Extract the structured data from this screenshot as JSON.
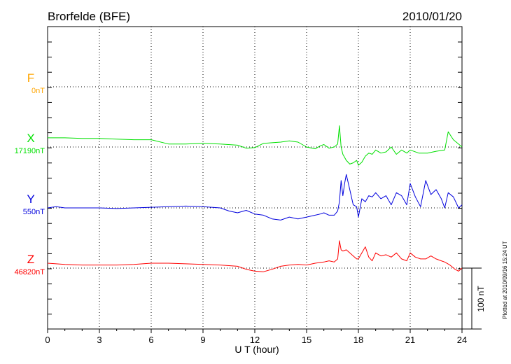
{
  "chart_data": {
    "type": "line",
    "title": "Brorfelde (BFE)",
    "date": "2010/01/20",
    "xlabel": "U T (hour)",
    "xlim": [
      0,
      24
    ],
    "xticks": [
      0,
      3,
      6,
      9,
      12,
      15,
      18,
      21,
      24
    ],
    "scale_bar_label": "100 nT",
    "side_note": "Plotted at 2010/09/16 15:24 UT",
    "grid": true,
    "series": [
      {
        "name": "F",
        "baseline_label": "0nT",
        "color": "#ffa500",
        "x": [],
        "y": []
      },
      {
        "name": "X",
        "baseline_label": "17190nT",
        "color": "#00e000",
        "x": [
          0,
          1,
          2,
          3,
          4,
          5,
          6,
          7,
          8,
          9,
          10,
          11,
          11.5,
          12,
          12.5,
          13,
          13.5,
          14,
          14.5,
          15,
          15.5,
          15.8,
          16,
          16.3,
          16.6,
          16.8,
          16.9,
          17,
          17.1,
          17.3,
          17.5,
          17.7,
          17.9,
          18,
          18.2,
          18.4,
          18.6,
          18.8,
          19,
          19.3,
          19.6,
          19.9,
          20.2,
          20.5,
          20.8,
          21,
          21.5,
          22,
          22.5,
          23,
          23.2,
          23.5,
          23.8,
          24
        ],
        "y": [
          15,
          15,
          14,
          14,
          13,
          12,
          12,
          5,
          5,
          6,
          5,
          3,
          -2,
          -1,
          6,
          7,
          8,
          10,
          8,
          0,
          -3,
          2,
          4,
          -2,
          0,
          5,
          35,
          0,
          -12,
          -22,
          -28,
          -26,
          -22,
          -30,
          -25,
          -15,
          -10,
          -12,
          -5,
          -10,
          -8,
          0,
          -12,
          -5,
          -10,
          -5,
          -10,
          -10,
          -7,
          -5,
          25,
          12,
          5,
          0
        ]
      },
      {
        "name": "Y",
        "baseline_label": "550nT",
        "color": "#0000dd",
        "x": [
          0,
          0.5,
          1,
          2,
          3,
          4,
          5,
          6,
          7,
          8,
          9,
          10,
          10.5,
          11,
          11.5,
          12,
          12.5,
          13,
          13.5,
          14,
          14.5,
          15,
          15.5,
          15.8,
          16,
          16.3,
          16.6,
          16.8,
          16.9,
          17,
          17.1,
          17.2,
          17.3,
          17.5,
          17.7,
          17.9,
          18,
          18.2,
          18.4,
          18.6,
          18.8,
          19,
          19.3,
          19.6,
          19.9,
          20.2,
          20.5,
          20.8,
          21,
          21.3,
          21.6,
          21.9,
          22.2,
          22.5,
          22.8,
          23,
          23.2,
          23.5,
          23.8,
          24
        ],
        "y": [
          0,
          2,
          0,
          0,
          0,
          -1,
          0,
          1,
          2,
          3,
          2,
          0,
          -5,
          -8,
          -4,
          -10,
          -12,
          -18,
          -20,
          -15,
          -18,
          -15,
          -12,
          -10,
          -8,
          -12,
          -12,
          -5,
          10,
          45,
          20,
          40,
          55,
          30,
          5,
          2,
          -15,
          15,
          10,
          20,
          18,
          25,
          15,
          20,
          5,
          25,
          20,
          5,
          40,
          18,
          2,
          45,
          22,
          30,
          15,
          0,
          25,
          18,
          0,
          5
        ]
      },
      {
        "name": "Z",
        "baseline_label": "46820nT",
        "color": "#ff0000",
        "x": [
          0,
          1,
          2,
          3,
          4,
          5,
          6,
          7,
          8,
          9,
          10,
          11,
          11.5,
          12,
          12.5,
          13,
          13.5,
          14,
          14.5,
          15,
          15.5,
          16,
          16.3,
          16.6,
          16.8,
          16.9,
          17,
          17.1,
          17.3,
          17.5,
          17.7,
          17.9,
          18,
          18.2,
          18.4,
          18.6,
          18.8,
          19,
          19.3,
          19.6,
          19.9,
          20.2,
          20.5,
          20.8,
          21,
          21.3,
          21.6,
          21.9,
          22.2,
          22.5,
          22.8,
          23,
          23.3,
          23.6,
          23.8,
          24
        ],
        "y": [
          8,
          6,
          5,
          5,
          5,
          6,
          8,
          8,
          7,
          6,
          5,
          3,
          -2,
          -5,
          -6,
          -2,
          3,
          5,
          6,
          5,
          8,
          10,
          12,
          10,
          15,
          45,
          30,
          28,
          30,
          25,
          20,
          15,
          15,
          25,
          35,
          18,
          12,
          25,
          20,
          22,
          18,
          25,
          15,
          12,
          25,
          18,
          15,
          15,
          20,
          15,
          12,
          10,
          5,
          -2,
          -5,
          0
        ]
      }
    ]
  }
}
